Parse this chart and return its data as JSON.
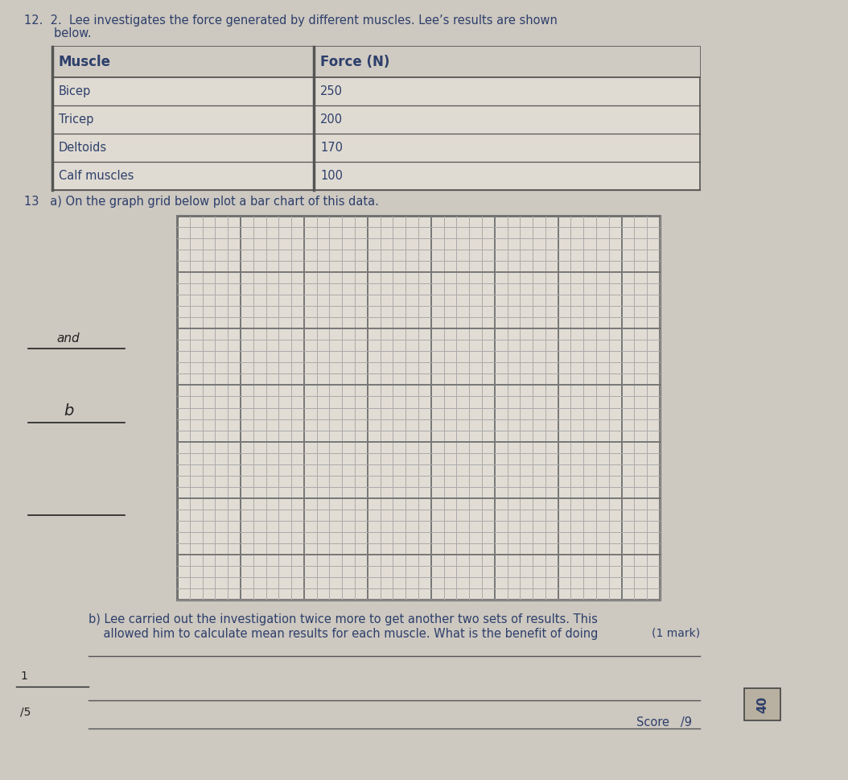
{
  "page_bg": "#cdc8c0",
  "title_text_1": "12.  2.  Lee investigates the force generated by different muscles. Lee’s results are shown",
  "title_text_2": "        below.",
  "table_headers": [
    "Muscle",
    "Force (N)"
  ],
  "table_rows": [
    [
      "Bicep",
      "250"
    ],
    [
      "Tricep",
      "200"
    ],
    [
      "Deltoids",
      "170"
    ],
    [
      "Calf muscles",
      "100"
    ]
  ],
  "question_13_a": "13   a) On the graph grid below plot a bar chart of this data.",
  "question_13_b_1": "b) Lee carried out the investigation twice more to get another two sets of results. This",
  "question_13_b_2": "    allowed him to calculate mean results for each muscle. What is the benefit of doing",
  "mark_text": "(1 mark)",
  "score_line_label": "/5",
  "score_text": "Score   /9",
  "grid_bg": "#e2ddd4",
  "border_color": "#444444",
  "grid_line_minor": "#aaaaaa",
  "grid_line_major": "#777777",
  "text_color": "#2d3f6b",
  "table_bg": "#e0dbd2",
  "table_header_bg": "#d0cbc2",
  "num_grid_cols": 38,
  "num_grid_rows": 34,
  "handwriting_color": "#222222",
  "line_color": "#555555"
}
